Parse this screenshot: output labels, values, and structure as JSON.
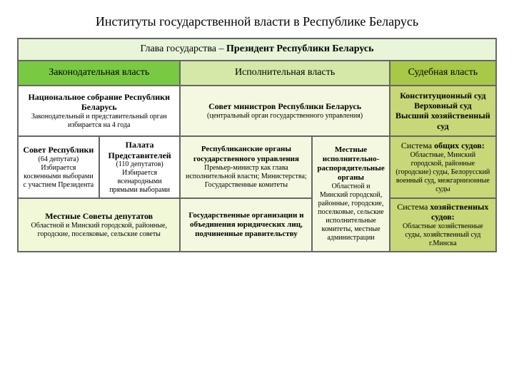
{
  "title": "Институты государственной власти в Республике Беларусь",
  "colors": {
    "head_bg": "#e8f5d8",
    "leg_branch_bg": "#7ac943",
    "exec_branch_bg": "#d4e8a8",
    "jud_branch_bg": "#a8c847",
    "leg_body_bg": "#ffffff",
    "exec_body_bg": "#f5f8e0",
    "jud_body_bg": "#c8d878",
    "leg_detail_bg": "#ffffff",
    "exec_detail_bg": "#f5f8e0",
    "jud_detail_bg": "#c8d878",
    "leg_bottom_bg": "#f0f8d8",
    "border": "#666666"
  },
  "head_of_state": {
    "label": "Глава государства –",
    "bold": "Президент Республики Беларусь"
  },
  "branches": {
    "legislative": "Законодательная власть",
    "executive": "Исполнительная власть",
    "judicial": "Судебная власть"
  },
  "bodies": {
    "legislative": {
      "main": "Национальное собрание Республики Беларусь",
      "sub": "Законодательный и представительный орган избирается на 4 года"
    },
    "executive": {
      "main": "Совет министров Республики Беларусь",
      "sub": "(центральный орган государственного управления)"
    },
    "judicial": {
      "lines": [
        "Конституционный суд",
        "Верховный суд",
        "Высший хозяйственный суд"
      ]
    }
  },
  "legislative_chambers": {
    "sovet": {
      "title": "Совет Республики",
      "sub": "(64 депутата) Избирается косвенными выборами с участием Президента"
    },
    "palata": {
      "title": "Палата Представителей",
      "sub": "(110 депутатов) Избирается всенародными прямыми выборами"
    }
  },
  "executive_details": {
    "republican": {
      "title": "Республиканские органы государственного управления",
      "sub": "Премьер-министр как глава исполнительной власти; Министерства; Государственные комитеты"
    },
    "local": {
      "title": "Местные исполнительно-распорядительные органы",
      "sub": "Областной и Минский городской, районные, городские, поселковые, сельские исполнительные комитеты, местные администрации"
    },
    "gos_org": "Государственные организации и объединения юридических лиц, подчиненные правительству"
  },
  "judicial_details": {
    "common": {
      "title_pre": "Система",
      "title_bold": "общих судов:",
      "sub": "Областные, Минский городской, районные (городские) суды, Белорусский военный суд, межгарнизонные суды"
    },
    "economic": {
      "title_pre": "Система",
      "title_bold": "хозяйственных судов:",
      "sub": "Областные хозяйственные суды, хозяйственный суд г.Минска"
    }
  },
  "local_councils": {
    "title": "Местные Советы депутатов",
    "sub": "Областной и Минский городской, районные, городские, поселковые, сельские советы"
  },
  "font_sizes": {
    "title": 18,
    "branch": 14,
    "body": 12,
    "detail": 11,
    "sub": 10
  }
}
